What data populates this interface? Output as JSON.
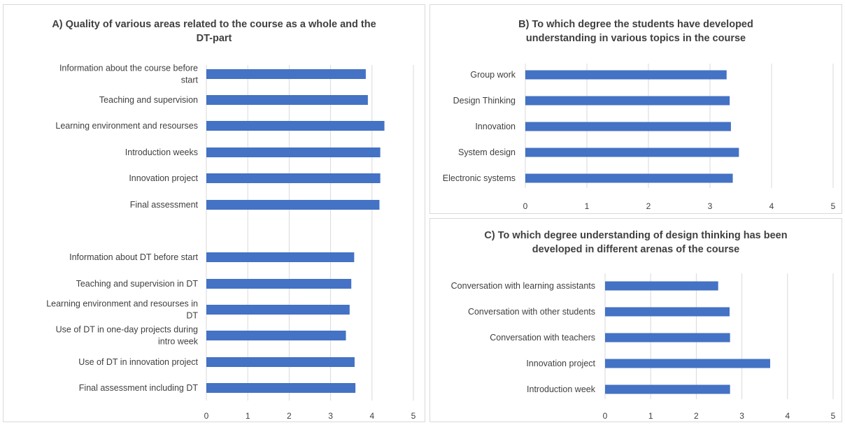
{
  "colors": {
    "bar": "#4472c4",
    "grid": "#d9d9d9",
    "text": "#404040"
  },
  "chart_data": [
    {
      "type": "bar",
      "orientation": "horizontal",
      "title": "A) Quality of various areas related to the course as a whole and the DT-part",
      "categories": [
        "Information about the course before start",
        "Teaching and supervision",
        "Learning environment and resourses",
        "Introduction weeks",
        "Innovation project",
        "Final assessment",
        "",
        "Information about DT before start",
        "Teaching and supervision in DT",
        "Learning environment and resourses in DT",
        "Use of DT in one-day projects during intro week",
        "Use of DT in innovation project",
        "Final assessment including DT"
      ],
      "values": [
        3.85,
        3.9,
        4.3,
        4.2,
        4.2,
        4.18,
        null,
        3.57,
        3.5,
        3.46,
        3.37,
        3.58,
        3.6
      ],
      "xlim": [
        0,
        5
      ],
      "xticks": [
        "0",
        "1",
        "2",
        "3",
        "4",
        "5"
      ],
      "grid": true,
      "legend": "none"
    },
    {
      "type": "bar",
      "orientation": "horizontal",
      "title": "B) To which degree the students have developed understanding in various topics in the course",
      "categories": [
        "Group work",
        "Design Thinking",
        "Innovation",
        "System design",
        "Electronic systems"
      ],
      "values": [
        3.27,
        3.32,
        3.34,
        3.47,
        3.37
      ],
      "xlim": [
        0,
        5
      ],
      "xticks": [
        "0",
        "1",
        "2",
        "3",
        "4",
        "5"
      ],
      "grid": true,
      "legend": "none"
    },
    {
      "type": "bar",
      "orientation": "horizontal",
      "title": "C) To which degree understanding of design thinking has been developed  in different arenas of the course",
      "categories": [
        "Conversation with learning assistants",
        "Conversation with other students",
        "Conversation with teachers",
        "Innovation project",
        "Introduction week"
      ],
      "values": [
        2.48,
        2.73,
        2.74,
        3.62,
        2.74
      ],
      "xlim": [
        0,
        5
      ],
      "xticks": [
        "0",
        "1",
        "2",
        "3",
        "4",
        "5"
      ],
      "grid": true,
      "legend": "none"
    }
  ]
}
